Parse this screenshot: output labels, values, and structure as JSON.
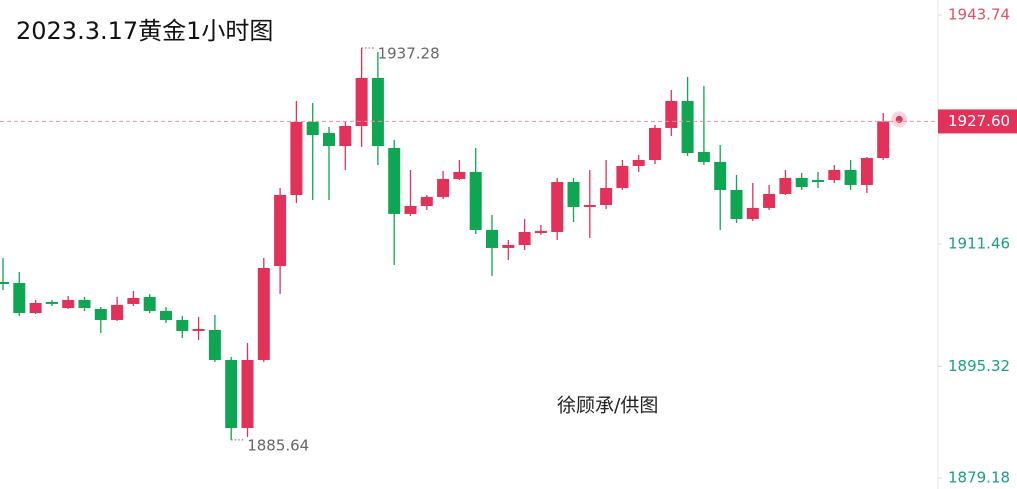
{
  "chart_data": {
    "type": "candlestick",
    "title": "2023.3.17黄金1小时图",
    "watermark": "徐顾承/供图",
    "up_color": "#e2325a",
    "down_color": "#0ea652",
    "ylim": [
      1879.17,
      1943.6
    ],
    "yticks": [
      1943.74,
      1911.46,
      1895.32,
      1879.18
    ],
    "current_price": {
      "value": 1927.6,
      "label": "1927.60"
    },
    "annotations": [
      {
        "value": 1937.28,
        "label": "1937.28",
        "at": "high"
      },
      {
        "value": 1885.64,
        "label": "1885.64",
        "at": "low"
      }
    ],
    "open": [
      1906.45,
      1906.31,
      1902.36,
      1903.81,
      1903.02,
      1904.08,
      1902.89,
      1901.44,
      1903.55,
      1904.47,
      1902.63,
      1901.44,
      1899.99,
      1900.12,
      1896.17,
      1887.21,
      1896.17,
      1908.55,
      1917.91,
      1927.53,
      1926.08,
      1924.36,
      1927.0,
      1933.32,
      1924.1,
      1915.41,
      1916.46,
      1917.65,
      1920.02,
      1920.94,
      1913.3,
      1910.93,
      1911.32,
      1912.9,
      1913.03,
      1919.62,
      1916.33,
      1916.59,
      1918.83,
      1921.73,
      1922.52,
      1926.74,
      1930.29,
      1923.57,
      1922.26,
      1918.57,
      1914.75,
      1916.2,
      1918.04,
      1920.15,
      1919.88,
      1919.88,
      1921.2,
      1919.23,
      1922.78
    ],
    "high": [
      1909.61,
      1907.76,
      1904.08,
      1904.08,
      1904.6,
      1904.47,
      1903.15,
      1904.47,
      1905.26,
      1904.87,
      1903.15,
      1901.97,
      1901.84,
      1902.1,
      1896.57,
      1898.41,
      1909.61,
      1918.83,
      1930.29,
      1930.03,
      1926.87,
      1927.53,
      1937.28,
      1936.75,
      1925.16,
      1921.2,
      1917.91,
      1921.07,
      1922.52,
      1924.1,
      1915.27,
      1911.98,
      1914.75,
      1913.96,
      1920.15,
      1920.15,
      1921.2,
      1922.52,
      1922.52,
      1923.18,
      1927.13,
      1931.74,
      1933.46,
      1932.27,
      1924.5,
      1920.54,
      1919.49,
      1919.23,
      1921.2,
      1920.81,
      1920.94,
      1921.86,
      1922.52,
      1922.92,
      1928.71
    ],
    "low": [
      1905.39,
      1901.97,
      1902.23,
      1903.28,
      1902.89,
      1902.63,
      1899.73,
      1901.31,
      1903.28,
      1902.36,
      1901.05,
      1899.07,
      1898.81,
      1895.91,
      1885.64,
      1886.03,
      1895.91,
      1904.87,
      1916.85,
      1917.25,
      1917.25,
      1921.2,
      1924.23,
      1921.86,
      1908.69,
      1915.14,
      1915.93,
      1917.38,
      1919.88,
      1912.77,
      1907.24,
      1909.34,
      1910.66,
      1912.64,
      1911.98,
      1914.35,
      1912.24,
      1916.06,
      1918.57,
      1920.94,
      1921.99,
      1925.68,
      1923.05,
      1921.86,
      1913.3,
      1914.22,
      1914.48,
      1915.93,
      1917.91,
      1918.57,
      1918.83,
      1919.49,
      1918.57,
      1918.17,
      1922.52
    ],
    "close": [
      1906.18,
      1902.36,
      1903.68,
      1903.55,
      1904.08,
      1903.02,
      1901.44,
      1903.42,
      1904.34,
      1902.63,
      1901.44,
      1899.99,
      1900.25,
      1896.17,
      1887.21,
      1896.17,
      1908.29,
      1917.91,
      1927.53,
      1925.81,
      1924.36,
      1927.0,
      1933.32,
      1924.36,
      1915.41,
      1916.46,
      1917.65,
      1920.02,
      1920.94,
      1913.3,
      1910.93,
      1911.32,
      1913.03,
      1913.17,
      1919.62,
      1916.33,
      1916.59,
      1918.83,
      1921.73,
      1922.52,
      1926.74,
      1930.29,
      1923.44,
      1922.26,
      1918.57,
      1914.75,
      1916.2,
      1918.04,
      1920.15,
      1918.96,
      1919.62,
      1921.2,
      1919.23,
      1922.78,
      1927.6
    ]
  }
}
